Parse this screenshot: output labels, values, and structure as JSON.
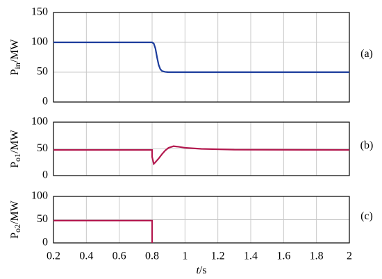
{
  "chart_data": [
    {
      "type": "line",
      "panel_label": "(a)",
      "y_label": {
        "symbol": "P",
        "subscript": "in",
        "unit": "/MW"
      },
      "x": [
        0.2,
        0.8,
        0.81,
        0.82,
        0.83,
        0.84,
        0.85,
        0.86,
        0.88,
        0.9,
        2
      ],
      "values": [
        100,
        100,
        98,
        90,
        75,
        62,
        55,
        52,
        50.5,
        50,
        50
      ],
      "color": "#1c3c9c",
      "xlim": [
        0.2,
        2
      ],
      "xticks": [
        0.2,
        0.4,
        0.6,
        0.8,
        1,
        1.2,
        1.4,
        1.6,
        1.8,
        2
      ],
      "ylim": [
        0,
        150
      ],
      "yticks": [
        0,
        50,
        100,
        150
      ],
      "grid": true
    },
    {
      "type": "line",
      "panel_label": "(b)",
      "y_label": {
        "symbol": "P",
        "subscript": "o1",
        "unit": "/MW"
      },
      "x": [
        0.2,
        0.8,
        0.8,
        0.81,
        0.82,
        0.84,
        0.86,
        0.88,
        0.9,
        0.93,
        0.96,
        1,
        1.1,
        1.3,
        2
      ],
      "values": [
        48,
        48,
        35,
        22,
        25,
        32,
        40,
        47,
        52,
        55,
        54,
        52,
        50,
        48.5,
        48
      ],
      "color": "#b3184e",
      "xlim": [
        0.2,
        2
      ],
      "xticks": [
        0.2,
        0.4,
        0.6,
        0.8,
        1,
        1.2,
        1.4,
        1.6,
        1.8,
        2
      ],
      "ylim": [
        0,
        100
      ],
      "yticks": [
        0,
        50,
        100
      ],
      "grid": true
    },
    {
      "type": "line",
      "panel_label": "(c)",
      "y_label": {
        "symbol": "P",
        "subscript": "o2",
        "unit": "/MW"
      },
      "x": [
        0.2,
        0.8,
        0.8
      ],
      "values": [
        48,
        48,
        0
      ],
      "color": "#b3184e",
      "xlim": [
        0.2,
        2
      ],
      "xticks": [
        0.2,
        0.4,
        0.6,
        0.8,
        1,
        1.2,
        1.4,
        1.6,
        1.8,
        2
      ],
      "ylim": [
        0,
        100
      ],
      "yticks": [
        0,
        50,
        100
      ],
      "grid": true,
      "x_label": {
        "variable": "t",
        "unit": "/s"
      }
    }
  ]
}
